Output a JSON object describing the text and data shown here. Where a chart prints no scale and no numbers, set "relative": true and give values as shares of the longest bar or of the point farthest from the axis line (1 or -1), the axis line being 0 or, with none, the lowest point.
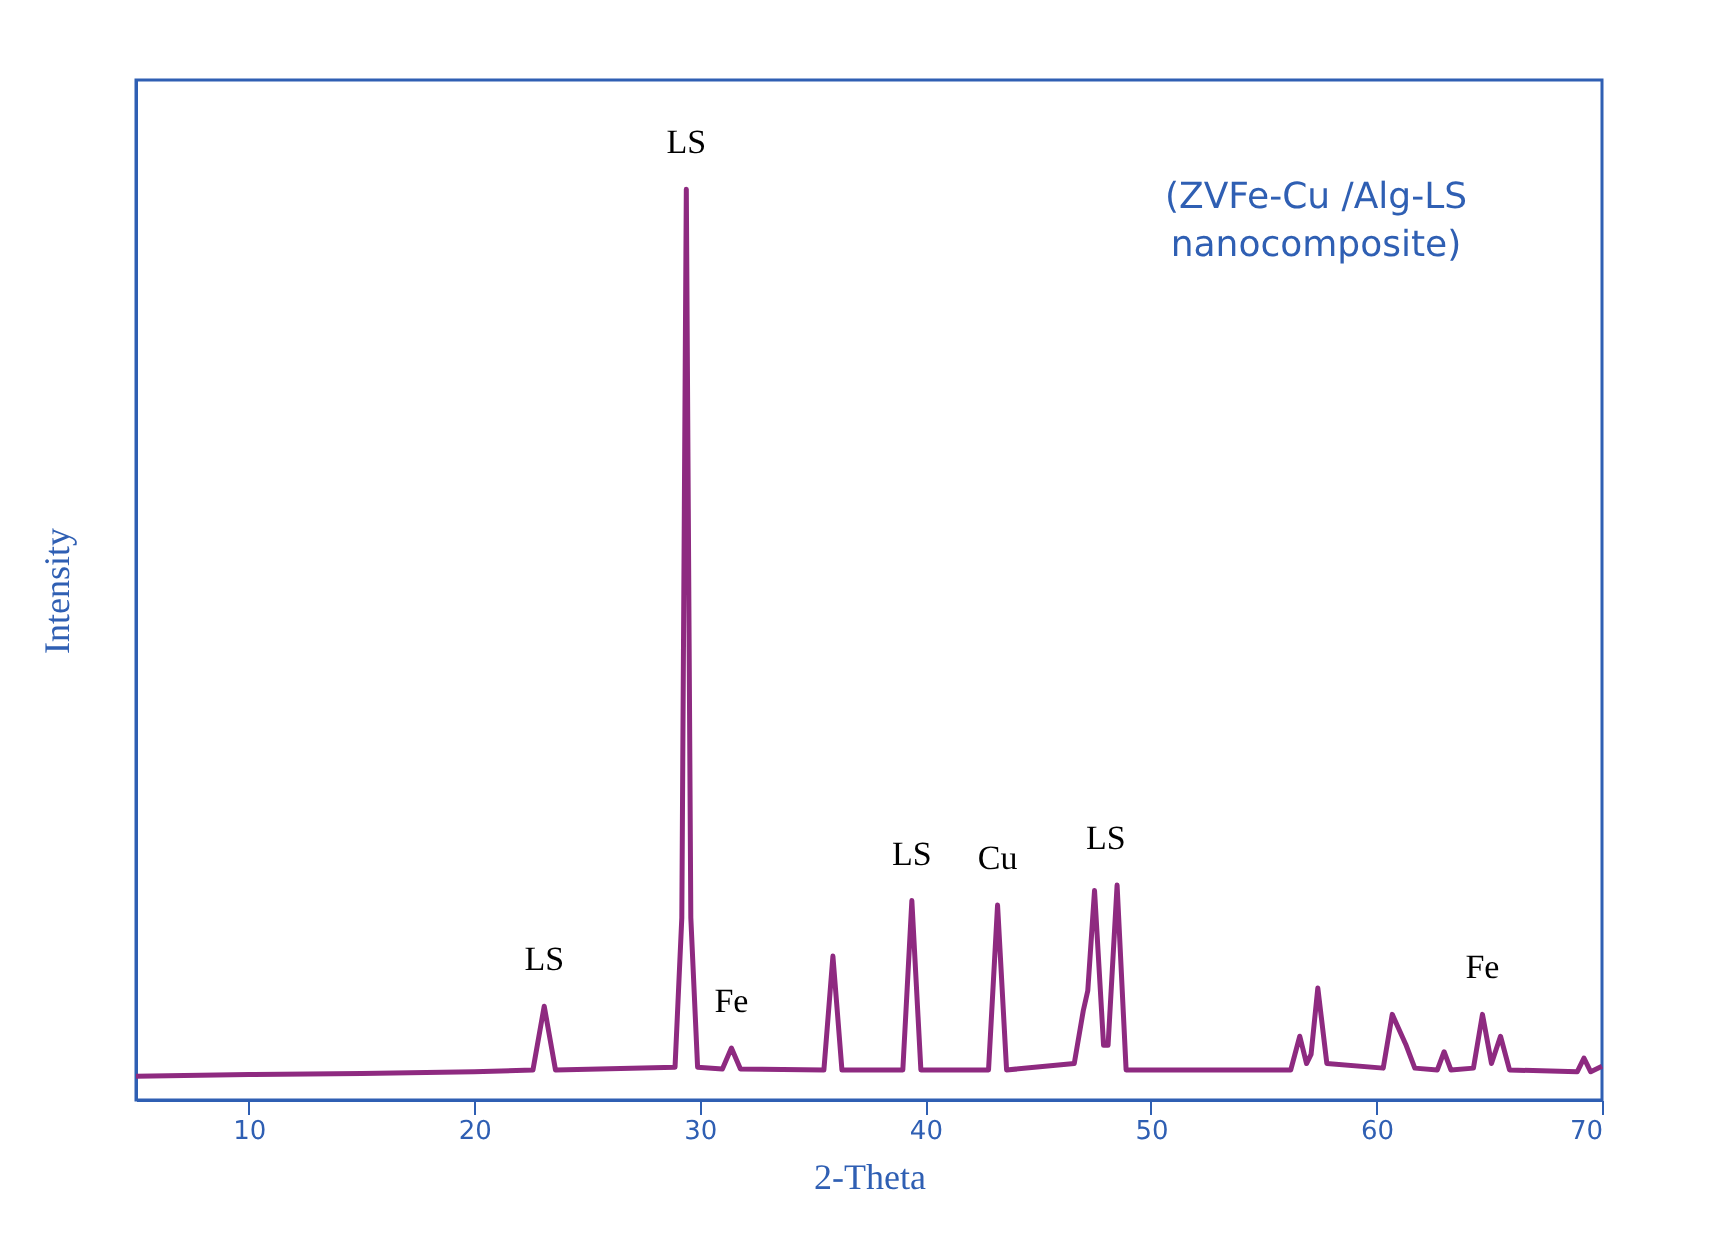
{
  "chart_data": {
    "type": "line",
    "relative": true,
    "xlabel": "2-Theta",
    "ylabel": "Intensity",
    "xlim": [
      5,
      70
    ],
    "xticks": [
      10,
      20,
      30,
      40,
      50,
      60,
      70
    ],
    "grid": false,
    "marker": "none",
    "line_style": "solid",
    "x": [
      5,
      10,
      15,
      20,
      22.6,
      23.1,
      23.6,
      28.9,
      29.2,
      29.4,
      29.6,
      29.9,
      31.0,
      31.4,
      31.8,
      35.5,
      35.9,
      36.3,
      39.0,
      39.4,
      39.8,
      42.8,
      43.2,
      43.6,
      46.6,
      47.0,
      47.2,
      47.5,
      47.9,
      48.1,
      48.5,
      48.9,
      56.2,
      56.6,
      56.9,
      57.1,
      57.4,
      57.8,
      60.3,
      60.7,
      61.3,
      61.7,
      62.7,
      63.0,
      63.3,
      64.3,
      64.7,
      65.1,
      65.5,
      65.9,
      68.9,
      69.2,
      69.5,
      70
    ],
    "series": [
      {
        "color": "#8e2a80",
        "values": [
          0.026,
          0.028,
          0.029,
          0.031,
          0.033,
          0.103,
          0.033,
          0.036,
          0.2,
          1,
          0.2,
          0.036,
          0.034,
          0.057,
          0.034,
          0.033,
          0.158,
          0.033,
          0.033,
          0.219,
          0.033,
          0.033,
          0.214,
          0.033,
          0.04,
          0.098,
          0.12,
          0.23,
          0.06,
          0.06,
          0.236,
          0.033,
          0.033,
          0.07,
          0.04,
          0.05,
          0.123,
          0.04,
          0.035,
          0.094,
          0.061,
          0.035,
          0.033,
          0.053,
          0.033,
          0.035,
          0.094,
          0.04,
          0.07,
          0.033,
          0.031,
          0.046,
          0.031,
          0.037
        ]
      }
    ],
    "annotations": [
      {
        "text": "LS",
        "x": 23.1,
        "y": 0.103
      },
      {
        "text": "LS",
        "x": 29.4,
        "y": 1
      },
      {
        "text": "Fe",
        "x": 31.4,
        "y": 0.057
      },
      {
        "text": "LS",
        "x": 39.4,
        "y": 0.219
      },
      {
        "text": "Cu",
        "x": 43.2,
        "y": 0.214
      },
      {
        "text": "LS",
        "x": 48.0,
        "y": 0.236
      },
      {
        "text": "Fe",
        "x": 64.7,
        "y": 0.094
      },
      "(ZVFe-Cu /Alg-LS\nnanocomposite)"
    ]
  }
}
